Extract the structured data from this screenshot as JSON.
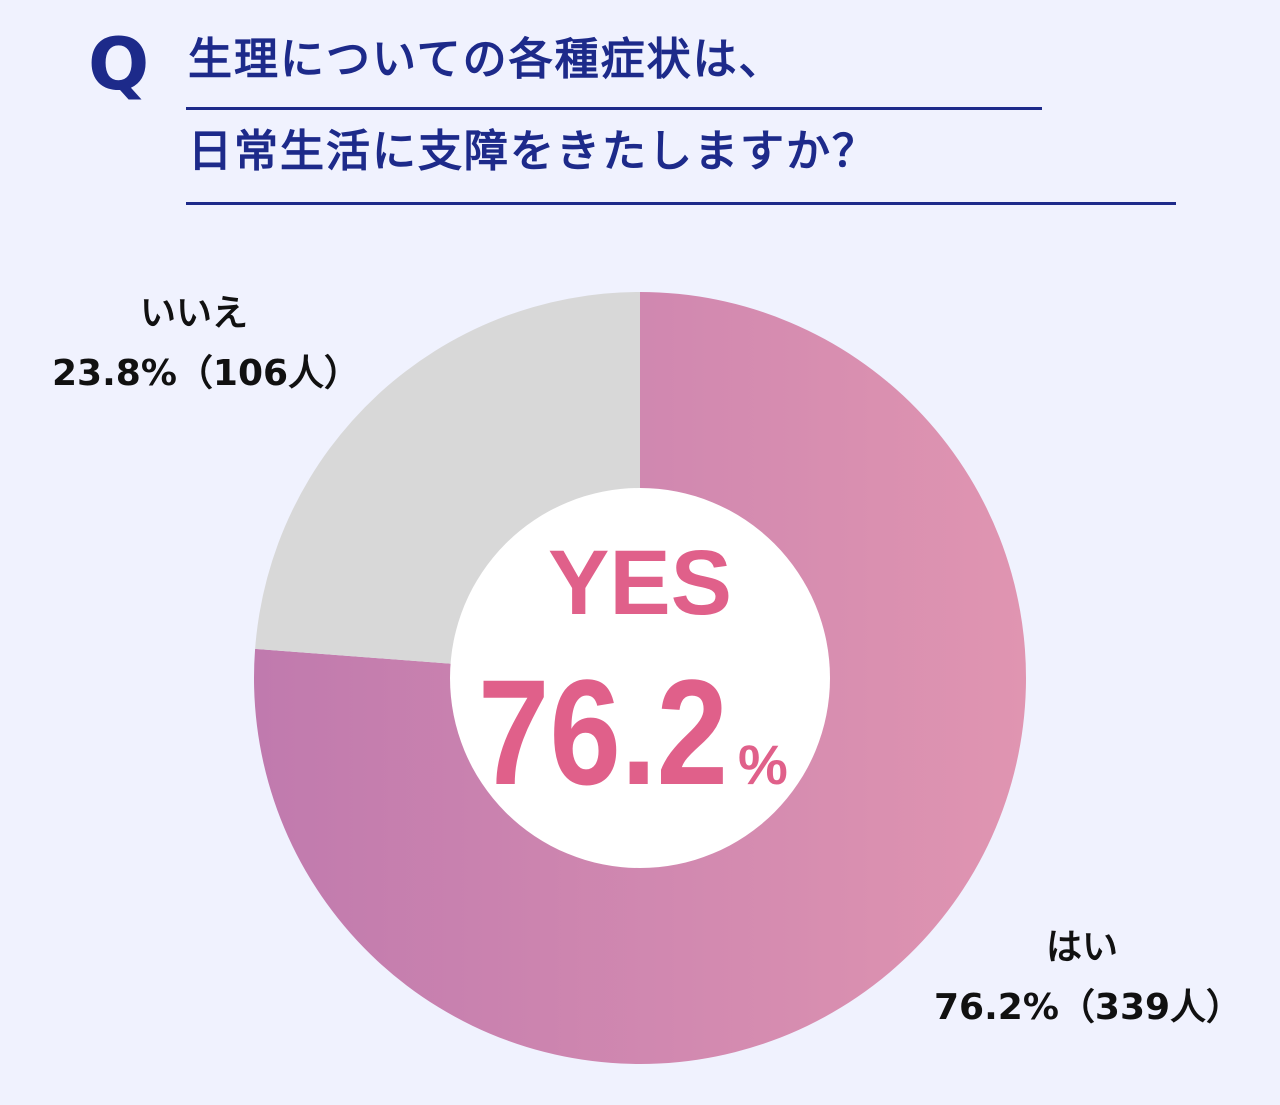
{
  "question": {
    "mark": "Q",
    "line1": "生理についての各種症状は、",
    "line2": "日常生活に支障をきたしますか？"
  },
  "labels": {
    "no_name": "いいえ",
    "no_value": "23.8%（106人）",
    "yes_name": "はい",
    "yes_value": "76.2%（339人）"
  },
  "center": {
    "headline": "YES",
    "number": "76.2",
    "unit": "%"
  },
  "colors": {
    "title": "#1d2a8a",
    "background": "#f0f2fe",
    "yes_gradient_start": "#c07aae",
    "yes_gradient_end": "#e095b1",
    "no_slice": "#d8d8d8",
    "center_text": "#e0608a"
  },
  "chart_data": {
    "type": "pie",
    "title": "生理についての各種症状は、日常生活に支障をきたしますか？",
    "categories": [
      "はい",
      "いいえ"
    ],
    "values": [
      76.2,
      23.8
    ],
    "counts": [
      339,
      106
    ],
    "unit": "%"
  }
}
